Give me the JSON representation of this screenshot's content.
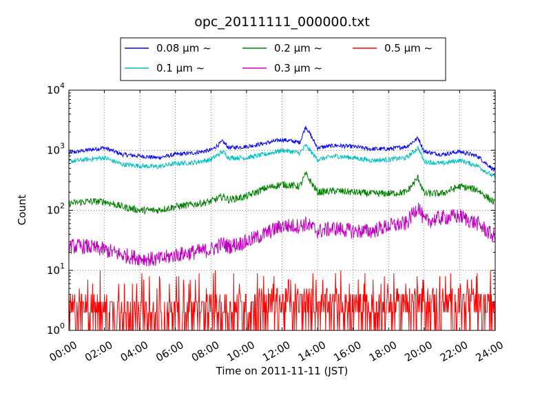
{
  "chart_data": {
    "type": "line",
    "title": "opc_20111111_000000.txt",
    "xlabel": "Time on 2011-11-11 (JST)",
    "ylabel": "Count",
    "xlim": [
      "00:00",
      "24:00"
    ],
    "ylim": [
      1,
      10000
    ],
    "yscale": "log",
    "grid": true,
    "legend_position": "top-center",
    "x_ticks": [
      "00:00",
      "02:00",
      "04:00",
      "06:00",
      "08:00",
      "10:00",
      "12:00",
      "14:00",
      "16:00",
      "18:00",
      "20:00",
      "22:00",
      "24:00"
    ],
    "y_ticks": [
      {
        "base": "10",
        "exp": "0"
      },
      {
        "base": "10",
        "exp": "1"
      },
      {
        "base": "10",
        "exp": "2"
      },
      {
        "base": "10",
        "exp": "3"
      },
      {
        "base": "10",
        "exp": "4"
      }
    ],
    "x": [
      "00:00",
      "01:00",
      "02:00",
      "03:00",
      "04:00",
      "05:00",
      "06:00",
      "07:00",
      "08:00",
      "08:40",
      "09:00",
      "10:00",
      "11:00",
      "12:00",
      "13:00",
      "13:20",
      "14:00",
      "15:00",
      "16:00",
      "17:00",
      "18:00",
      "19:00",
      "19:40",
      "20:00",
      "21:00",
      "22:00",
      "23:00",
      "24:00"
    ],
    "series": [
      {
        "name": "0.08 μm ~",
        "color": "#0000ff",
        "values": [
          900,
          1000,
          1100,
          850,
          800,
          750,
          850,
          900,
          1000,
          1400,
          1100,
          1150,
          1300,
          1500,
          1350,
          2500,
          1100,
          1200,
          1150,
          1050,
          1050,
          1150,
          1600,
          950,
          850,
          950,
          800,
          450
        ]
      },
      {
        "name": "0.1 μm ~",
        "color": "#00bfbf",
        "values": [
          650,
          700,
          750,
          580,
          550,
          530,
          600,
          620,
          700,
          950,
          750,
          750,
          850,
          1000,
          900,
          1200,
          700,
          800,
          750,
          680,
          700,
          750,
          1100,
          650,
          600,
          680,
          550,
          350
        ]
      },
      {
        "name": "0.2 μm ~",
        "color": "#008000",
        "values": [
          130,
          140,
          140,
          115,
          100,
          100,
          115,
          125,
          140,
          170,
          150,
          170,
          230,
          270,
          250,
          400,
          200,
          210,
          200,
          190,
          190,
          200,
          350,
          190,
          190,
          250,
          220,
          130
        ]
      },
      {
        "name": "0.3 μm ~",
        "color": "#bf00bf",
        "values": [
          25,
          25,
          22,
          18,
          16,
          15,
          18,
          20,
          22,
          28,
          25,
          30,
          40,
          55,
          55,
          60,
          45,
          50,
          45,
          45,
          55,
          60,
          120,
          65,
          75,
          80,
          60,
          35
        ]
      },
      {
        "name": "0.5 μm ~",
        "color": "#ff0000",
        "values": [
          2,
          2,
          2,
          2,
          1.6,
          1.5,
          1.6,
          1.8,
          2,
          2,
          2,
          2.2,
          2.5,
          2.6,
          2.5,
          2.5,
          2.4,
          2.2,
          2.2,
          2.1,
          2.2,
          2.4,
          2.6,
          2.5,
          2.5,
          2.6,
          2.3,
          2
        ]
      }
    ]
  }
}
